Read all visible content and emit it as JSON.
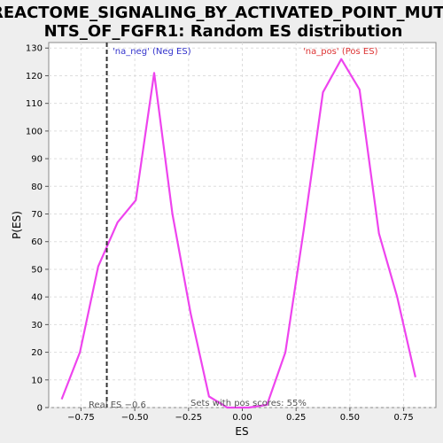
{
  "chart_data": {
    "type": "line",
    "title_lines": [
      "REACTOME_SIGNALING_BY_ACTIVATED_POINT_MUTA",
      "NTS_OF_FGFR1: Random ES distribution"
    ],
    "xlabel": "ES",
    "ylabel": "P(ES)",
    "xlim": [
      -0.9,
      0.9
    ],
    "ylim": [
      0,
      132
    ],
    "x_ticks": [
      -0.75,
      -0.5,
      -0.25,
      0.0,
      0.25,
      0.5,
      0.75
    ],
    "x_tick_labels": [
      "−0.75",
      "−0.50",
      "−0.25",
      "0.00",
      "0.25",
      "0.50",
      "0.75"
    ],
    "y_ticks": [
      0,
      10,
      20,
      30,
      40,
      50,
      60,
      70,
      80,
      90,
      100,
      110,
      120,
      130
    ],
    "y_tick_labels": [
      "0",
      "10",
      "20",
      "30",
      "40",
      "50",
      "60",
      "70",
      "80",
      "90",
      "100",
      "110",
      "120",
      "130"
    ],
    "grid": true,
    "series": [
      {
        "color": "#ee44ee",
        "x": [
          -0.84,
          -0.755,
          -0.67,
          -0.58,
          -0.495,
          -0.41,
          -0.325,
          -0.24,
          -0.155,
          -0.07,
          0.03,
          0.115,
          0.2,
          0.285,
          0.375,
          0.46,
          0.545,
          0.635,
          0.72,
          0.805
        ],
        "y": [
          3,
          20,
          51,
          67,
          75,
          121,
          70,
          34,
          4,
          0,
          0,
          1,
          20,
          64,
          114,
          126,
          115,
          63,
          40,
          11
        ]
      }
    ],
    "real_es": -0.63,
    "annotations": {
      "neg_label": "'na_neg' (Neg ES)",
      "neg_color": "#3333cc",
      "pos_label": "'na_pos' (Pos ES)",
      "pos_color": "#dd3333",
      "real_es_label": "Real ES −0.6",
      "sets_label": "Sets with pos scores: 55%"
    }
  }
}
